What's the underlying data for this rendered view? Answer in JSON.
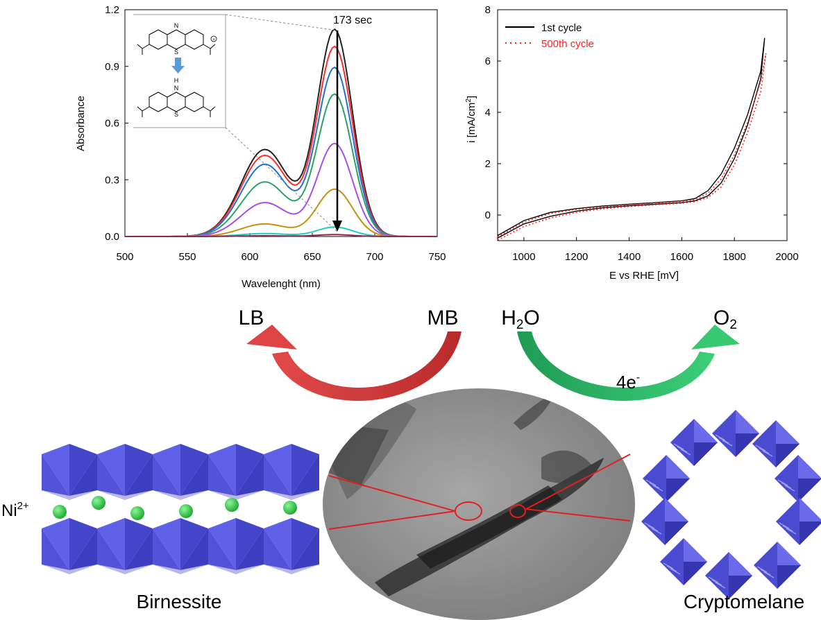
{
  "chart_data": [
    {
      "type": "line",
      "xlabel": "Wavelenght (nm)",
      "ylabel": "Absorbance",
      "xlim": [
        500,
        750
      ],
      "ylim": [
        0,
        1.2
      ],
      "xticks": [
        "500",
        "550",
        "600",
        "650",
        "700",
        "750"
      ],
      "yticks": [
        "0.0",
        "0.3",
        "0.6",
        "0.9",
        "1.2"
      ],
      "annotation": "173 sec",
      "series": [
        {
          "color": "#222222",
          "peak": 1.09,
          "shoulder": 0.59
        },
        {
          "color": "#ff2a2a",
          "peak": 1.0,
          "shoulder": 0.55
        },
        {
          "color": "#1f6fe0",
          "peak": 0.89,
          "shoulder": 0.49
        },
        {
          "color": "#2aa06a",
          "peak": 0.75,
          "shoulder": 0.37
        },
        {
          "color": "#a64ee8",
          "peak": 0.49,
          "shoulder": 0.23
        },
        {
          "color": "#c8900a",
          "peak": 0.25,
          "shoulder": 0.085
        },
        {
          "color": "#22c8c8",
          "peak": 0.05,
          "shoulder": 0.02
        },
        {
          "color": "#8b2a4a",
          "peak": 0.01,
          "shoulder": 0.005
        }
      ]
    },
    {
      "type": "line",
      "xlabel": "E vs RHE [mV]",
      "ylabel": "i [mA/cm2]",
      "xlim": [
        900,
        2000
      ],
      "ylim": [
        -1,
        8
      ],
      "xticks": [
        "1000",
        "1200",
        "1400",
        "1600",
        "1800",
        "2000"
      ],
      "yticks": [
        "0",
        "2",
        "4",
        "6",
        "8"
      ],
      "legend": "top-left",
      "series": [
        {
          "name": "1st cycle",
          "color": "#000000",
          "style": "solid",
          "upper": [
            [
              900,
              -0.8
            ],
            [
              1000,
              -0.22
            ],
            [
              1100,
              0.1
            ],
            [
              1200,
              0.25
            ],
            [
              1300,
              0.35
            ],
            [
              1400,
              0.42
            ],
            [
              1500,
              0.48
            ],
            [
              1600,
              0.55
            ],
            [
              1650,
              0.64
            ],
            [
              1700,
              0.95
            ],
            [
              1750,
              1.6
            ],
            [
              1800,
              2.6
            ],
            [
              1850,
              3.9
            ],
            [
              1900,
              5.6
            ],
            [
              1915,
              6.9
            ]
          ],
          "lower": [
            [
              1915,
              6.9
            ],
            [
              1900,
              5.3
            ],
            [
              1850,
              3.5
            ],
            [
              1800,
              2.2
            ],
            [
              1750,
              1.25
            ],
            [
              1700,
              0.75
            ],
            [
              1650,
              0.55
            ],
            [
              1600,
              0.48
            ],
            [
              1500,
              0.42
            ],
            [
              1400,
              0.36
            ],
            [
              1300,
              0.28
            ],
            [
              1200,
              0.15
            ],
            [
              1100,
              -0.05
            ],
            [
              1000,
              -0.35
            ],
            [
              900,
              -0.9
            ]
          ]
        },
        {
          "name": "500th cycle",
          "color": "#ff2222",
          "style": "dotted",
          "upper": [
            [
              900,
              -0.85
            ],
            [
              1000,
              -0.28
            ],
            [
              1100,
              0.06
            ],
            [
              1200,
              0.22
            ],
            [
              1300,
              0.32
            ],
            [
              1400,
              0.4
            ],
            [
              1500,
              0.46
            ],
            [
              1600,
              0.53
            ],
            [
              1650,
              0.6
            ],
            [
              1700,
              0.85
            ],
            [
              1750,
              1.4
            ],
            [
              1800,
              2.35
            ],
            [
              1850,
              3.6
            ],
            [
              1900,
              5.2
            ],
            [
              1920,
              6.3
            ]
          ],
          "lower": [
            [
              1920,
              6.3
            ],
            [
              1900,
              4.8
            ],
            [
              1850,
              3.2
            ],
            [
              1800,
              1.95
            ],
            [
              1750,
              1.1
            ],
            [
              1700,
              0.68
            ],
            [
              1650,
              0.52
            ],
            [
              1600,
              0.46
            ],
            [
              1500,
              0.4
            ],
            [
              1400,
              0.33
            ],
            [
              1300,
              0.24
            ],
            [
              1200,
              0.1
            ],
            [
              1100,
              -0.12
            ],
            [
              1000,
              -0.45
            ],
            [
              900,
              -0.98
            ]
          ]
        }
      ]
    }
  ],
  "inset": {
    "top_atoms": {
      "n": "N",
      "s": "S",
      "charge": "+"
    },
    "bottom_atoms": {
      "h": "H",
      "n": "N",
      "s": "S"
    }
  },
  "scheme": {
    "lb": "LB",
    "mb": "MB",
    "h2o": {
      "main": "H",
      "sub": "2",
      "tail": "O"
    },
    "o2": {
      "main": "O",
      "sub": "2"
    },
    "electrons": {
      "main": "4e",
      "sup": "-"
    },
    "ni": {
      "main": "Ni",
      "sup": "2+"
    },
    "birnessite": "Birnessite",
    "cryptomelane": "Cryptomelane"
  },
  "colors": {
    "octahedra": "#5050dc",
    "nickel_ions": "#2ecc40",
    "red_arrow": "#d63a3a",
    "green_arrow": "#27ae60",
    "tem_background": "#909090"
  }
}
